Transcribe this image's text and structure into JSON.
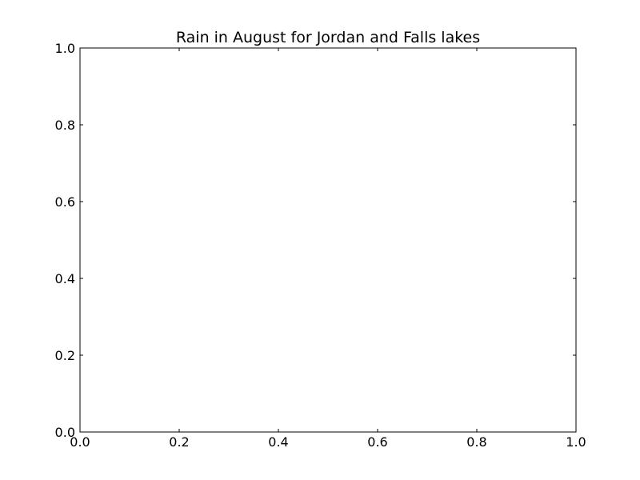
{
  "chart_data": {
    "type": "line",
    "title": "Rain in August for Jordan and Falls lakes",
    "xlabel": "",
    "ylabel": "",
    "xlim": [
      0.0,
      1.0
    ],
    "ylim": [
      0.0,
      1.0
    ],
    "x_ticks": [
      "0.0",
      "0.2",
      "0.4",
      "0.6",
      "0.8",
      "1.0"
    ],
    "y_ticks": [
      "0.0",
      "0.2",
      "0.4",
      "0.6",
      "0.8",
      "1.0"
    ],
    "series": [],
    "grid": false,
    "legend": "none"
  }
}
